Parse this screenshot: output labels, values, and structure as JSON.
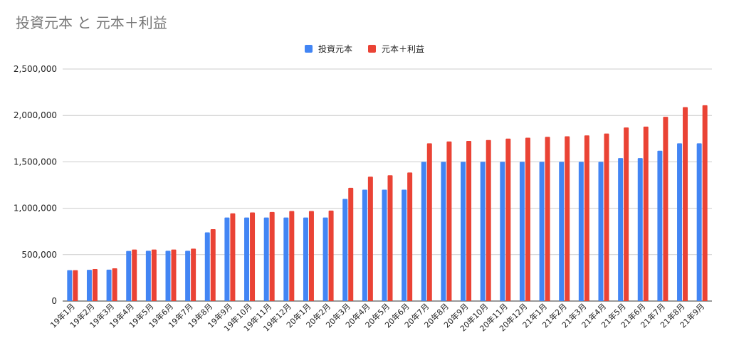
{
  "chart_data": {
    "type": "bar",
    "title": "投資元本 と 元本＋利益",
    "xlabel": "",
    "ylabel": "",
    "ylim": [
      0,
      2500000
    ],
    "y_ticks": [
      "0",
      "500,000",
      "1,000,000",
      "1,500,000",
      "2,000,000",
      "2,500,000"
    ],
    "y_tick_values": [
      0,
      500000,
      1000000,
      1500000,
      2000000,
      2500000
    ],
    "grid": true,
    "legend_position": "top",
    "categories": [
      "19年1月",
      "19年2月",
      "19年3月",
      "19年4月",
      "19年5月",
      "19年6月",
      "19年7月",
      "19年8月",
      "19年9月",
      "19年10月",
      "19年11月",
      "19年12月",
      "20年1月",
      "20年2月",
      "20年3月",
      "20年4月",
      "20年5月",
      "20年6月",
      "20年7月",
      "20年8月",
      "20年9月",
      "20年10月",
      "20年11月",
      "20年12月",
      "21年1月",
      "21年2月",
      "21年3月",
      "21年4月",
      "21年5月",
      "21年6月",
      "21年7月",
      "21年8月",
      "21年9月"
    ],
    "series": [
      {
        "name": "投資元本",
        "color": "#4285f4",
        "values": [
          333000,
          336000,
          338000,
          540000,
          542000,
          542000,
          542000,
          740000,
          900000,
          900000,
          900000,
          900000,
          900000,
          900000,
          1100000,
          1200000,
          1200000,
          1200000,
          1500000,
          1500000,
          1500000,
          1500000,
          1500000,
          1500000,
          1500000,
          1500000,
          1500000,
          1500000,
          1540000,
          1540000,
          1620000,
          1700000,
          1700000
        ]
      },
      {
        "name": "元本＋利益",
        "color": "#ea4335",
        "values": [
          333000,
          345000,
          353000,
          555000,
          555000,
          555000,
          565000,
          775000,
          945000,
          955000,
          960000,
          970000,
          970000,
          975000,
          1220000,
          1340000,
          1355000,
          1385000,
          1700000,
          1720000,
          1725000,
          1735000,
          1750000,
          1760000,
          1770000,
          1775000,
          1785000,
          1805000,
          1870000,
          1880000,
          1985000,
          2090000,
          2110000
        ]
      }
    ]
  }
}
